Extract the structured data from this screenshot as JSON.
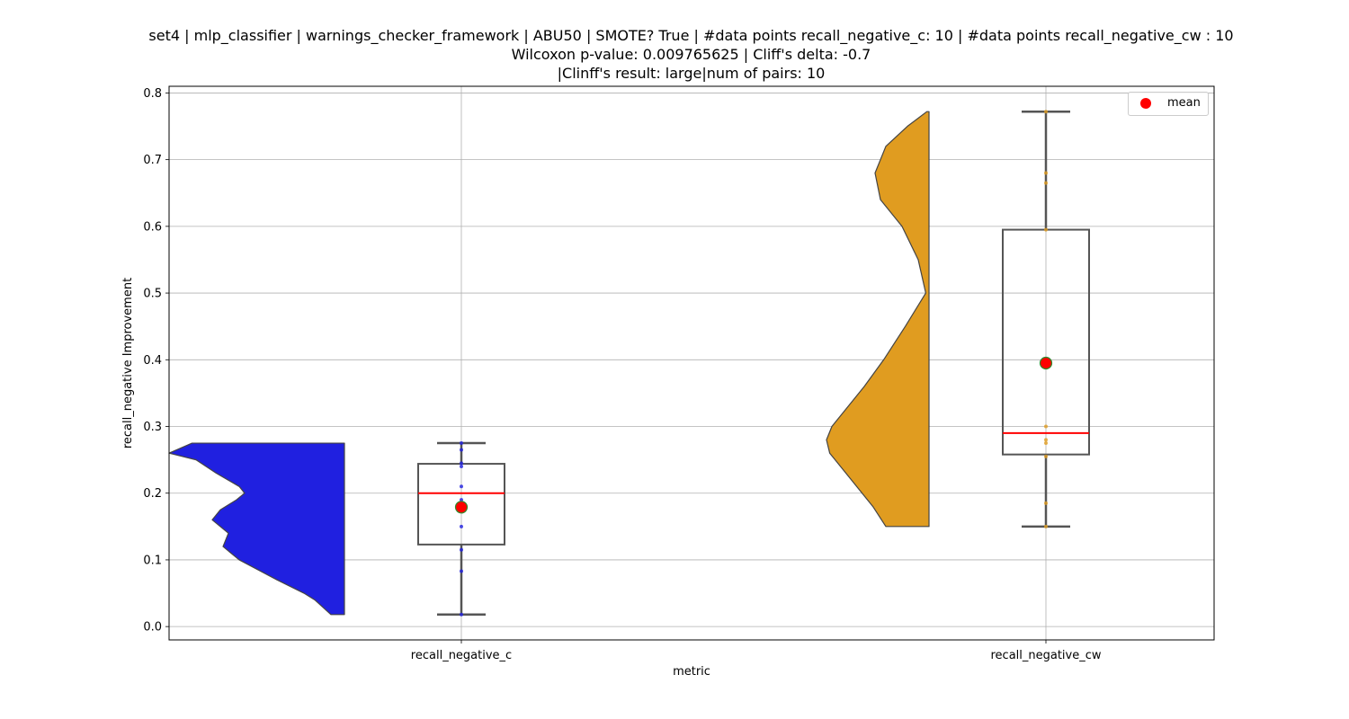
{
  "chart_data": {
    "type": "violin+box",
    "title_lines": [
      "set4 | mlp_classifier | warnings_checker_framework | ABU50 | SMOTE? True | #data points recall_negative_c: 10 | #data points recall_negative_cw : 10",
      "Wilcoxon p-value: 0.009765625 | Cliff's delta: -0.7",
      "|Clinff's result: large|num of pairs: 10"
    ],
    "xlabel": "metric",
    "ylabel": "recall_negative Improvement",
    "ylim": [
      -0.02,
      0.81
    ],
    "yticks": [
      0.0,
      0.1,
      0.2,
      0.3,
      0.4,
      0.5,
      0.6,
      0.7,
      0.8
    ],
    "ytick_labels": [
      "0.0",
      "0.1",
      "0.2",
      "0.3",
      "0.4",
      "0.5",
      "0.6",
      "0.7",
      "0.8"
    ],
    "categories": [
      "recall_negative_c",
      "recall_negative_cw"
    ],
    "grid": true,
    "legend": {
      "position": "top-right",
      "entries": [
        {
          "label": "mean",
          "color": "#ff0000"
        }
      ]
    },
    "series": [
      {
        "category": "recall_negative_c",
        "color": "#2020e0",
        "box": {
          "min": 0.018,
          "q1": 0.123,
          "median": 0.2,
          "q3": 0.244,
          "max": 0.275
        },
        "mean": 0.179,
        "points": [
          0.018,
          0.083,
          0.115,
          0.15,
          0.19,
          0.21,
          0.24,
          0.245,
          0.265,
          0.275
        ],
        "violin": {
          "y": [
            0.018,
            0.04,
            0.05,
            0.07,
            0.1,
            0.12,
            0.14,
            0.16,
            0.175,
            0.19,
            0.2,
            0.21,
            0.23,
            0.25,
            0.26,
            0.275
          ],
          "width": [
            0.1,
            0.22,
            0.3,
            0.5,
            0.78,
            0.9,
            0.86,
            0.98,
            0.92,
            0.8,
            0.74,
            0.78,
            0.95,
            1.1,
            1.3,
            1.13
          ]
        }
      },
      {
        "category": "recall_negative_cw",
        "color": "#e09c20",
        "box": {
          "min": 0.15,
          "q1": 0.258,
          "median": 0.29,
          "q3": 0.595,
          "max": 0.772
        },
        "mean": 0.395,
        "points": [
          0.15,
          0.185,
          0.255,
          0.275,
          0.28,
          0.3,
          0.595,
          0.665,
          0.68,
          0.772
        ],
        "violin": {
          "y": [
            0.15,
            0.18,
            0.22,
            0.26,
            0.28,
            0.3,
            0.33,
            0.36,
            0.4,
            0.45,
            0.5,
            0.55,
            0.6,
            0.64,
            0.68,
            0.72,
            0.75,
            0.772
          ],
          "width": [
            0.4,
            0.52,
            0.72,
            0.92,
            0.95,
            0.9,
            0.75,
            0.6,
            0.42,
            0.22,
            0.03,
            0.1,
            0.25,
            0.45,
            0.5,
            0.4,
            0.2,
            0.02
          ]
        }
      }
    ]
  }
}
